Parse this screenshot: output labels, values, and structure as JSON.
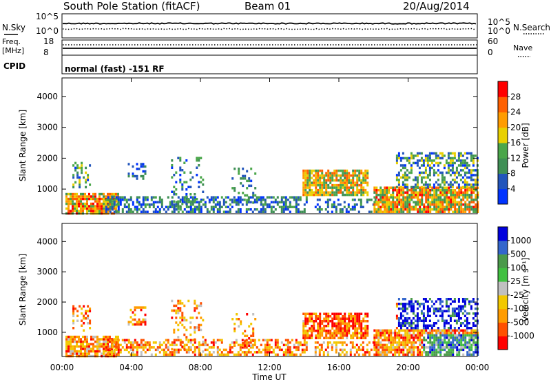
{
  "header": {
    "station": "South Pole Station (fitACF)",
    "beam": "Beam 01",
    "date": "20/Aug/2014"
  },
  "summary": {
    "nsky_label": "N.Sky",
    "nsearch_label": "N.Search",
    "freq_label": "Freq.",
    "freq_unit": "[MHz]",
    "nave_label": "Nave",
    "cpid_label": "CPID",
    "cpid_text": "normal (fast) -151 RF",
    "noise_top": "10^5",
    "noise_bottom": "10^0",
    "freq_top": "18",
    "freq_bottom": "8",
    "nave_top": "60",
    "nave_bottom": "0"
  },
  "colors": {
    "power": [
      "#0033ff",
      "#2255bb",
      "#3f8f55",
      "#4aa64a",
      "#e8d000",
      "#ff9c00",
      "#ff6000",
      "#ff0000"
    ],
    "velocity": [
      "#ff0000",
      "#ff5000",
      "#ff9c00",
      "#f2c800",
      "#c0c0c0",
      "#40c040",
      "#4a9a4a",
      "#3366cc",
      "#0000dd"
    ]
  },
  "chart_data": [
    {
      "type": "heatmap",
      "name": "power",
      "ylabel": "Slant Range [km]",
      "ylim": [
        200,
        4600
      ],
      "yticks": [
        "1000",
        "2000",
        "3000",
        "4000"
      ],
      "xlim": [
        0,
        24
      ],
      "colorbar_label": "Power [dB]",
      "colorbar_ticks": [
        "4",
        "8",
        "12",
        "16",
        "20",
        "24",
        "28"
      ],
      "colorbar_range": [
        0,
        32
      ]
    },
    {
      "type": "heatmap",
      "name": "velocity",
      "ylabel": "Slant Range [km]",
      "ylim": [
        200,
        4600
      ],
      "yticks": [
        "1000",
        "2000",
        "3000",
        "4000"
      ],
      "xlim": [
        0,
        24
      ],
      "xticks": [
        "00:00",
        "04:00",
        "08:00",
        "12:00",
        "16:00",
        "20:00",
        "00:00"
      ],
      "xlabel": "Time UT",
      "colorbar_label": "Velocity [m s⁻¹]",
      "colorbar_ticks": [
        "1000",
        "500",
        "100",
        "25",
        "-25",
        "-100",
        "-500",
        "-1000"
      ]
    }
  ]
}
